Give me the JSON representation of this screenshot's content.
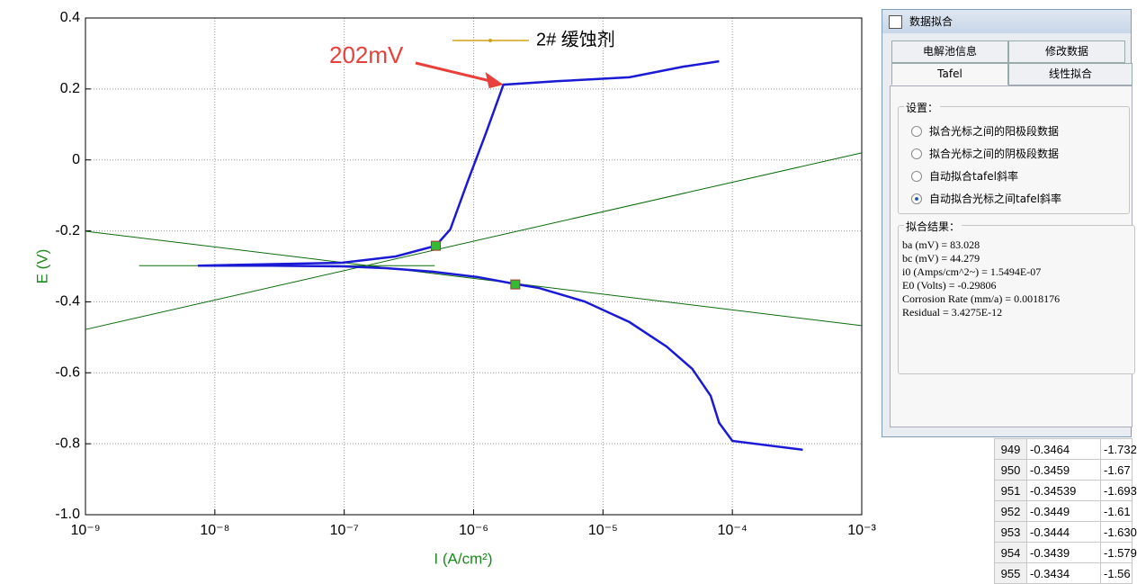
{
  "chart_data": {
    "type": "line",
    "xlabel": "I (A/cm²)",
    "ylabel": "E (V)",
    "xlog": true,
    "grid": true,
    "xlim": [
      1e-09,
      0.001
    ],
    "ylim": [
      -1.0,
      0.4
    ],
    "xticks": [
      {
        "value": 1e-09,
        "label": "10⁻⁹"
      },
      {
        "value": 1e-08,
        "label": "10⁻⁸"
      },
      {
        "value": 1e-07,
        "label": "10⁻⁷"
      },
      {
        "value": 1e-06,
        "label": "10⁻⁶"
      },
      {
        "value": 1e-05,
        "label": "10⁻⁵"
      },
      {
        "value": 0.0001,
        "label": "10⁻⁴"
      },
      {
        "value": 0.001,
        "label": "10⁻³"
      }
    ],
    "yticks": [
      {
        "value": -1,
        "label": "-1.0"
      },
      -0.8,
      -0.6,
      -0.4,
      -0.2,
      0,
      0.2,
      0.4
    ],
    "legend_color": "#d4a017",
    "series": [
      {
        "name": "2# 缓蚀剂",
        "color": "#1a1ad6",
        "x": [
          0.00035,
          0.0001,
          7.9e-05,
          6.8e-05,
          4.9e-05,
          3.1e-05,
          1.6e-05,
          7.2e-06,
          3.2e-06,
          2.2e-06,
          1.07e-06,
          4.8e-07,
          2.1e-07,
          9.5e-08,
          2.7e-08,
          7.4e-09,
          9.5e-08,
          2.5e-07,
          5.1e-07,
          6.6e-07,
          9.1e-07,
          1.23e-06,
          1.7e-06,
          4.5e-06,
          1.6e-05,
          4.2e-05,
          7.9e-05
        ],
        "values": [
          -0.817,
          -0.792,
          -0.741,
          -0.665,
          -0.589,
          -0.526,
          -0.457,
          -0.399,
          -0.361,
          -0.351,
          -0.33,
          -0.315,
          -0.305,
          -0.3,
          -0.298,
          -0.298,
          -0.29,
          -0.272,
          -0.242,
          -0.196,
          -0.056,
          0.07,
          0.212,
          0.222,
          0.233,
          0.263,
          0.278
        ]
      }
    ],
    "fit_lines": [
      {
        "color": "#0b6b0b",
        "x": [
          1e-09,
          0.001
        ],
        "values": [
          -0.201,
          -0.467
        ]
      },
      {
        "color": "#0b6b0b",
        "x": [
          1e-09,
          0.001
        ],
        "values": [
          -0.478,
          0.02
        ]
      },
      {
        "color": "#0b6b0b",
        "x": [
          2.6e-09,
          5e-07
        ],
        "values": [
          -0.298,
          -0.298
        ]
      }
    ],
    "cursors": {
      "color": "#33bb33",
      "x": [
        5.1e-07,
        2.1e-06
      ],
      "values": [
        -0.242,
        -0.351
      ]
    },
    "annotation": {
      "text": "202mV",
      "color": "#e8403a",
      "x": 1.7e-06,
      "y": 0.212
    }
  },
  "dialog": {
    "title": "数据拟合",
    "tabs": [
      "电解池信息",
      "修改数据",
      "Tafel",
      "线性拟合"
    ],
    "settings": {
      "title": "设置：",
      "options": [
        "拟合光标之间的阳极段数据",
        "拟合光标之间的阴极段数据",
        "自动拟合tafel斜率",
        "自动拟合光标之间tafel斜率"
      ],
      "selected": 3
    },
    "results": {
      "title": "拟合结果：",
      "lines": [
        "ba (mV) = 83.028",
        "bc (mV) = 44.279",
        "i0 (Amps/cm^2~) = 1.5494E-07",
        "E0 (Volts) = -0.29806",
        "Corrosion Rate (mm/a) = 0.0018176",
        "Residual = 3.4275E-12"
      ]
    }
  },
  "table": {
    "rows": [
      [
        "949",
        "-0.3464",
        "-1.732"
      ],
      [
        "950",
        "-0.3459",
        "-1.67"
      ],
      [
        "951",
        "-0.34539",
        "-1.693"
      ],
      [
        "952",
        "-0.3449",
        "-1.61"
      ],
      [
        "953",
        "-0.3444",
        "-1.630"
      ],
      [
        "954",
        "-0.3439",
        "-1.579"
      ],
      [
        "955",
        "-0.3434",
        "-1.56"
      ]
    ]
  }
}
